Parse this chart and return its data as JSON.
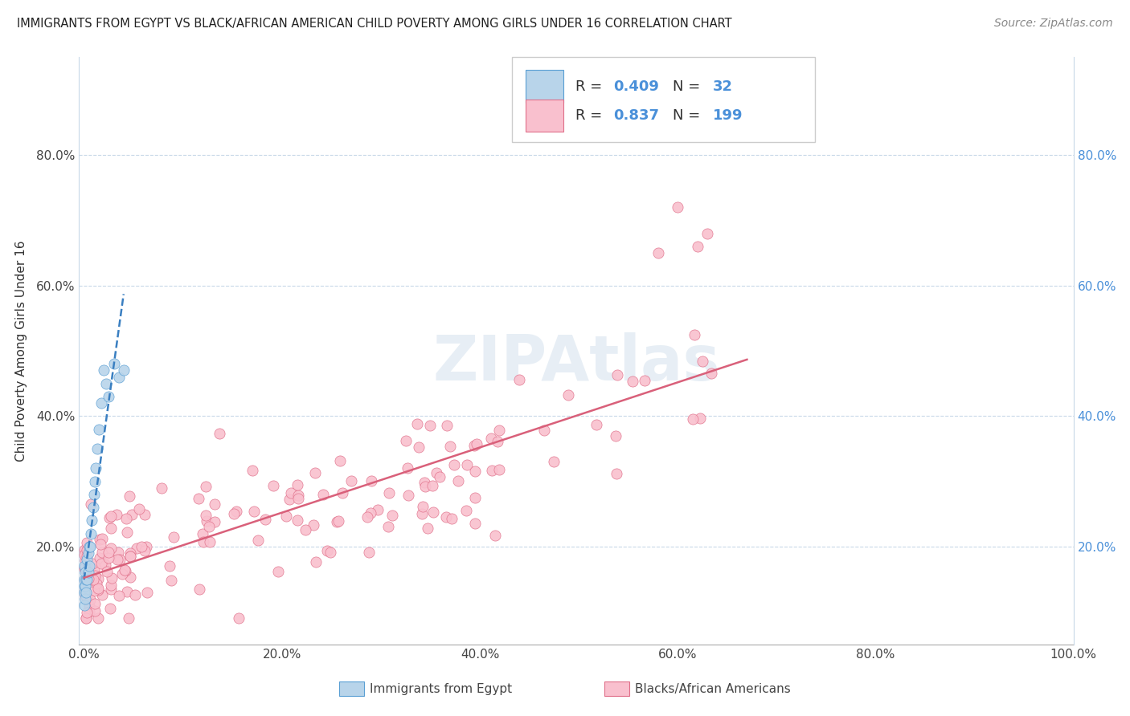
{
  "title": "IMMIGRANTS FROM EGYPT VS BLACK/AFRICAN AMERICAN CHILD POVERTY AMONG GIRLS UNDER 16 CORRELATION CHART",
  "source": "Source: ZipAtlas.com",
  "ylabel": "Child Poverty Among Girls Under 16",
  "xlim": [
    -0.005,
    1.0
  ],
  "ylim": [
    0.05,
    0.95
  ],
  "x_ticks": [
    0.0,
    0.2,
    0.4,
    0.6,
    0.8,
    1.0
  ],
  "x_tick_labels": [
    "0.0%",
    "20.0%",
    "40.0%",
    "60.0%",
    "80.0%",
    "100.0%"
  ],
  "y_ticks": [
    0.2,
    0.4,
    0.6,
    0.8
  ],
  "y_tick_labels_left": [
    "20.0%",
    "40.0%",
    "60.0%",
    "80.0%"
  ],
  "y_tick_labels_right": [
    "20.0%",
    "40.0%",
    "60.0%",
    "80.0%"
  ],
  "legend_R1": "0.409",
  "legend_N1": "32",
  "legend_R2": "0.837",
  "legend_N2": "199",
  "blue_fill": "#b8d4ea",
  "pink_fill": "#f9c0ce",
  "blue_edge": "#5a9fd4",
  "pink_edge": "#e0708a",
  "trend_blue_color": "#3a7fc1",
  "trend_pink_color": "#d9607a",
  "watermark": "ZIPAtlas",
  "background_color": "#ffffff",
  "grid_color": "#c8d8e8",
  "right_axis_color": "#4a90d9",
  "bottom_label_x1": "Immigrants from Egypt",
  "bottom_label_x2": "Blacks/African Americans"
}
